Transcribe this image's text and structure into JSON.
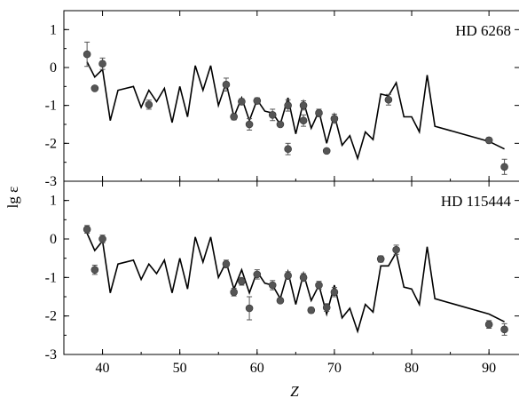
{
  "chart_data": [
    {
      "type": "line",
      "title": "HD 6268",
      "xlabel": "Z",
      "ylabel": "lg ε",
      "xlim": [
        35,
        94
      ],
      "ylim": [
        -3,
        1.5
      ],
      "x_ticks": [
        40,
        50,
        60,
        70,
        80,
        90
      ],
      "y_ticks": [
        1,
        0,
        -1,
        -2,
        -3
      ],
      "model": {
        "x": [
          38,
          39,
          40,
          41,
          42,
          44,
          45,
          46,
          47,
          48,
          49,
          50,
          51,
          52,
          53,
          54,
          55,
          56,
          57,
          58,
          59,
          60,
          61,
          62,
          63,
          64,
          65,
          66,
          67,
          68,
          69,
          70,
          71,
          72,
          73,
          74,
          75,
          76,
          77,
          78,
          79,
          80,
          81,
          82,
          83,
          90,
          92
        ],
        "y": [
          0.15,
          -0.25,
          -0.05,
          -1.4,
          -0.6,
          -0.5,
          -1.05,
          -0.6,
          -0.9,
          -0.55,
          -1.45,
          -0.5,
          -1.3,
          0.05,
          -0.6,
          0.05,
          -1.0,
          -0.4,
          -1.3,
          -0.8,
          -1.4,
          -0.85,
          -1.15,
          -1.2,
          -1.5,
          -0.8,
          -1.75,
          -0.9,
          -1.6,
          -1.15,
          -2.0,
          -1.25,
          -2.05,
          -1.8,
          -2.4,
          -1.7,
          -1.9,
          -0.7,
          -0.75,
          -0.4,
          -1.3,
          -1.3,
          -1.7,
          -0.2,
          -1.55,
          -1.95,
          -2.15
        ]
      },
      "observed": {
        "x": [
          38,
          39,
          40,
          46,
          56,
          57,
          58,
          59,
          60,
          62,
          63,
          64,
          64,
          66,
          66,
          68,
          69,
          70,
          77,
          90,
          92
        ],
        "y": [
          0.35,
          -0.55,
          0.1,
          -0.98,
          -0.45,
          -1.3,
          -0.9,
          -1.5,
          -0.88,
          -1.25,
          -1.5,
          -1.0,
          -2.15,
          -1.0,
          -1.4,
          -1.2,
          -2.2,
          -1.35,
          -0.85,
          -1.92,
          -2.62
        ],
        "err": [
          0.32,
          0.05,
          0.15,
          0.12,
          0.17,
          0.08,
          0.08,
          0.15,
          0.08,
          0.15,
          0.05,
          0.15,
          0.15,
          0.12,
          0.15,
          0.1,
          0.05,
          0.12,
          0.14,
          0.07,
          0.2
        ]
      }
    },
    {
      "type": "line",
      "title": "HD 115444",
      "xlabel": "Z",
      "ylabel": "lg ε",
      "xlim": [
        35,
        94
      ],
      "ylim": [
        -3,
        1.5
      ],
      "x_ticks": [
        40,
        50,
        60,
        70,
        80,
        90
      ],
      "y_ticks": [
        1,
        0,
        -1,
        -2,
        -3
      ],
      "model": {
        "x": [
          38,
          39,
          40,
          41,
          42,
          44,
          45,
          46,
          47,
          48,
          49,
          50,
          51,
          52,
          53,
          54,
          55,
          56,
          57,
          58,
          59,
          60,
          61,
          62,
          63,
          64,
          65,
          66,
          67,
          68,
          69,
          70,
          71,
          72,
          73,
          74,
          75,
          76,
          77,
          78,
          79,
          80,
          81,
          82,
          83,
          90,
          92
        ],
        "y": [
          0.15,
          -0.3,
          -0.05,
          -1.4,
          -0.65,
          -0.55,
          -1.05,
          -0.65,
          -0.9,
          -0.55,
          -1.4,
          -0.5,
          -1.3,
          0.05,
          -0.6,
          0.05,
          -1.0,
          -0.6,
          -1.3,
          -0.8,
          -1.4,
          -0.85,
          -1.15,
          -1.2,
          -1.55,
          -0.85,
          -1.7,
          -0.9,
          -1.6,
          -1.2,
          -1.95,
          -1.2,
          -2.05,
          -1.8,
          -2.4,
          -1.7,
          -1.9,
          -0.7,
          -0.7,
          -0.35,
          -1.25,
          -1.3,
          -1.7,
          -0.2,
          -1.55,
          -1.95,
          -2.15
        ]
      },
      "observed": {
        "x": [
          38,
          39,
          40,
          56,
          57,
          58,
          59,
          60,
          62,
          63,
          64,
          66,
          67,
          68,
          69,
          70,
          76,
          78,
          90,
          92
        ],
        "y": [
          0.25,
          -0.8,
          0.0,
          -0.65,
          -1.38,
          -1.1,
          -1.8,
          -0.92,
          -1.2,
          -1.6,
          -0.95,
          -1.0,
          -1.85,
          -1.2,
          -1.78,
          -1.38,
          -0.52,
          -0.28,
          -2.22,
          -2.35
        ],
        "err": [
          0.1,
          0.12,
          0.1,
          0.1,
          0.1,
          0.1,
          0.3,
          0.12,
          0.12,
          0.06,
          0.1,
          0.1,
          0.07,
          0.1,
          0.1,
          0.12,
          0.08,
          0.12,
          0.1,
          0.15
        ]
      }
    }
  ]
}
